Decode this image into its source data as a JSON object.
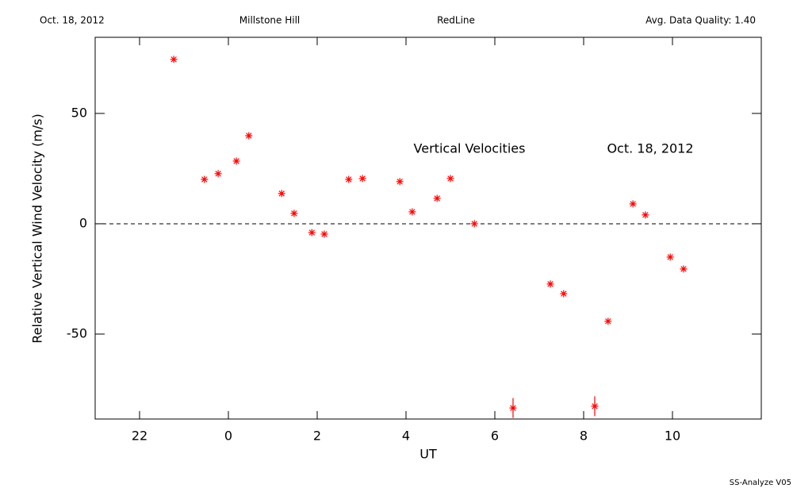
{
  "chart_data": {
    "type": "scatter",
    "header": [
      "Oct. 18, 2012",
      "Millstone Hill",
      "RedLine",
      "Avg. Data Quality: 1.40"
    ],
    "annotations": [
      "Vertical Velocities",
      "Oct. 18, 2012"
    ],
    "footer": "SS-Analyze V05",
    "x_label": "UT",
    "y_label": "Relative Vertical Wind Velocity (m/s)",
    "xlim": [
      -3,
      12
    ],
    "xticks": [
      {
        "value": -2,
        "label": "22"
      },
      0,
      2,
      4,
      6,
      8,
      10
    ],
    "ylim": [
      -88.5,
      84.5
    ],
    "yticks": [
      -50,
      0,
      50
    ],
    "reference_line": 0,
    "color": "#ff0000",
    "x": [
      -1.23,
      -0.54,
      -0.23,
      0.18,
      0.46,
      1.2,
      1.48,
      1.88,
      2.16,
      2.71,
      3.02,
      3.86,
      4.14,
      4.7,
      5.0,
      5.54,
      6.41,
      7.25,
      7.55,
      8.25,
      8.55,
      9.11,
      9.39,
      9.95,
      10.25
    ],
    "values": [
      74.5,
      20.1,
      22.7,
      28.4,
      39.9,
      13.7,
      4.7,
      -4.0,
      -4.7,
      20.1,
      20.5,
      19.1,
      5.4,
      11.5,
      20.5,
      0,
      -83.5,
      -27.3,
      -31.7,
      -82.7,
      -44.2,
      9.0,
      4.0,
      -15.1,
      -20.5
    ],
    "errors": [
      null,
      null,
      null,
      null,
      null,
      null,
      null,
      null,
      null,
      null,
      null,
      null,
      null,
      null,
      null,
      null,
      4.5,
      null,
      null,
      4.5,
      null,
      null,
      null,
      null,
      null
    ]
  }
}
